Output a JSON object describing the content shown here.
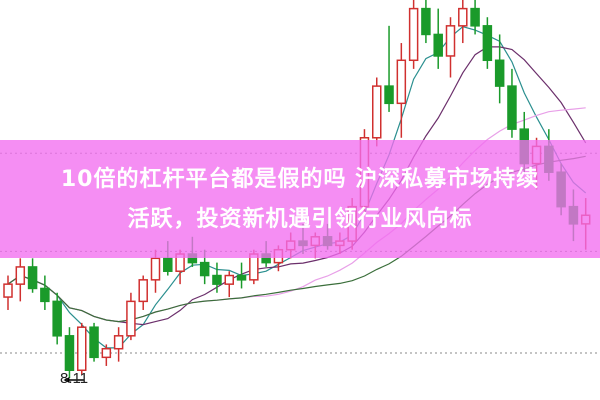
{
  "headline": {
    "line1": "10倍的杠杆平台都是假的吗 沪深私募市场持续",
    "line2": "活跃，投资新机遇引领行业风向标"
  },
  "colors": {
    "banner": "#f26ef0",
    "up_candle": "#d0302f",
    "down_candle": "#1a9a2a",
    "ma5": "#2a8f8f",
    "ma10": "#6b2f6b",
    "ma20": "#e8a0e8",
    "ma30": "#3a6e3a"
  },
  "chart_data": {
    "type": "candlestick",
    "ylim": [
      8.11,
      12.5
    ],
    "low_marker": "8.11",
    "reference_levels": [
      10.72,
      9.58,
      8.4
    ],
    "moving_averages": [
      5,
      10,
      20,
      30
    ],
    "candles": [
      [
        9.05,
        9.3,
        8.9,
        9.2
      ],
      [
        9.2,
        9.5,
        9.0,
        9.4
      ],
      [
        9.4,
        9.5,
        9.1,
        9.15
      ],
      [
        9.15,
        9.3,
        8.9,
        9.0
      ],
      [
        9.0,
        9.1,
        8.5,
        8.6
      ],
      [
        8.6,
        8.7,
        8.11,
        8.2
      ],
      [
        8.2,
        8.75,
        8.15,
        8.7
      ],
      [
        8.7,
        8.75,
        8.3,
        8.35
      ],
      [
        8.35,
        8.5,
        8.25,
        8.45
      ],
      [
        8.45,
        8.7,
        8.3,
        8.6
      ],
      [
        8.6,
        9.1,
        8.55,
        9.0
      ],
      [
        9.0,
        9.3,
        8.9,
        9.25
      ],
      [
        9.25,
        9.6,
        9.1,
        9.5
      ],
      [
        9.5,
        9.7,
        9.3,
        9.35
      ],
      [
        9.35,
        9.6,
        9.2,
        9.55
      ],
      [
        9.55,
        9.75,
        9.4,
        9.45
      ],
      [
        9.45,
        9.6,
        9.2,
        9.3
      ],
      [
        9.3,
        9.45,
        9.1,
        9.2
      ],
      [
        9.2,
        9.35,
        9.05,
        9.3
      ],
      [
        9.3,
        9.45,
        9.15,
        9.25
      ],
      [
        9.25,
        9.6,
        9.2,
        9.55
      ],
      [
        9.55,
        9.7,
        9.4,
        9.45
      ],
      [
        9.45,
        9.65,
        9.35,
        9.6
      ],
      [
        9.6,
        9.8,
        9.5,
        9.7
      ],
      [
        9.7,
        9.9,
        9.55,
        9.65
      ],
      [
        9.65,
        9.8,
        9.5,
        9.75
      ],
      [
        9.75,
        9.9,
        9.6,
        9.65
      ],
      [
        9.65,
        9.8,
        9.55,
        9.7
      ],
      [
        9.7,
        10.2,
        9.6,
        10.1
      ],
      [
        10.1,
        11.0,
        10.0,
        10.9
      ],
      [
        10.9,
        11.6,
        10.8,
        11.5
      ],
      [
        11.5,
        12.2,
        11.2,
        11.3
      ],
      [
        11.3,
        12.0,
        10.9,
        11.8
      ],
      [
        11.8,
        12.6,
        11.7,
        12.4
      ],
      [
        12.4,
        12.6,
        12.0,
        12.1
      ],
      [
        12.1,
        12.4,
        11.7,
        11.85
      ],
      [
        11.85,
        12.3,
        11.6,
        12.2
      ],
      [
        12.2,
        12.5,
        12.0,
        12.4
      ],
      [
        12.4,
        12.6,
        12.1,
        12.2
      ],
      [
        12.2,
        12.3,
        11.7,
        11.8
      ],
      [
        11.8,
        12.1,
        11.3,
        11.5
      ],
      [
        11.5,
        11.7,
        10.9,
        11.0
      ],
      [
        11.0,
        11.2,
        10.5,
        10.6
      ],
      [
        10.6,
        10.9,
        10.3,
        10.8
      ],
      [
        10.8,
        11.0,
        10.4,
        10.5
      ],
      [
        10.5,
        10.6,
        10.0,
        10.1
      ],
      [
        10.1,
        10.3,
        9.7,
        9.9
      ],
      [
        9.9,
        10.2,
        9.6,
        10.0
      ]
    ]
  }
}
